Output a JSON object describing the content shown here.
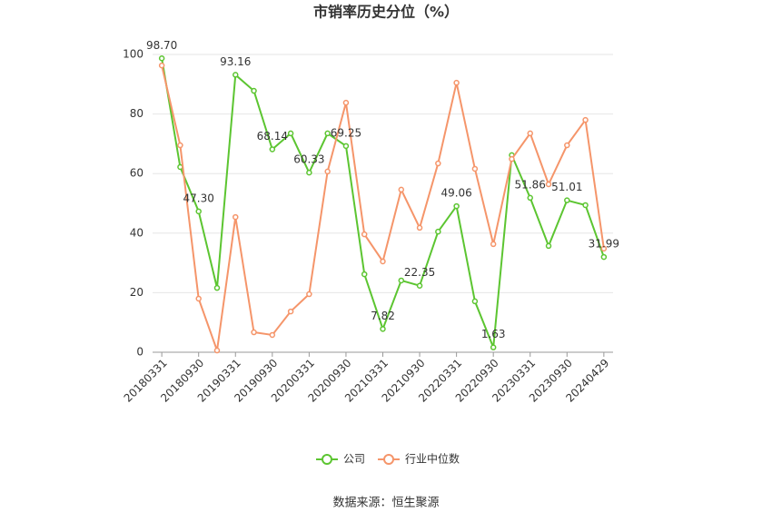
{
  "chart_data": {
    "type": "line",
    "title": "市销率历史分位（%）",
    "source": "数据来源：恒生聚源",
    "categories": [
      "20180331",
      null,
      "20180930",
      null,
      "20190331",
      null,
      "20190930",
      null,
      "20200331",
      null,
      "20200930",
      null,
      "20210331",
      null,
      "20210930",
      null,
      "20220331",
      null,
      "20220930",
      null,
      "20230331",
      null,
      "20230930",
      null,
      "20240429"
    ],
    "series": [
      {
        "name": "公司",
        "color": "#5cc531",
        "values": [
          98.7,
          62.2,
          47.3,
          21.6,
          93.16,
          87.8,
          68.14,
          73.5,
          60.33,
          73.5,
          69.25,
          26.2,
          7.82,
          24.1,
          22.35,
          40.5,
          49.06,
          17.1,
          1.63,
          66.2,
          51.86,
          35.7,
          51.01,
          49.4,
          31.99
        ],
        "value_labels": [
          "98.70",
          null,
          "47.30",
          null,
          "93.16",
          null,
          "68.14",
          null,
          "60.33",
          null,
          "69.25",
          null,
          "7.82",
          null,
          "22.35",
          null,
          "49.06",
          null,
          "1.63",
          null,
          "51.86",
          null,
          "51.01",
          null,
          "31.99"
        ]
      },
      {
        "name": "行业中位数",
        "color": "#f5956a",
        "values": [
          96.3,
          69.5,
          18.0,
          0.6,
          45.4,
          6.7,
          5.8,
          13.7,
          19.5,
          60.7,
          83.8,
          39.6,
          30.5,
          54.6,
          41.8,
          63.4,
          90.5,
          61.6,
          36.3,
          64.9,
          73.5,
          56.4,
          69.5,
          78.0,
          34.8
        ]
      }
    ],
    "ylim": [
      0,
      100
    ],
    "yticks": [
      0,
      20,
      40,
      60,
      80,
      100
    ],
    "grid": true
  }
}
